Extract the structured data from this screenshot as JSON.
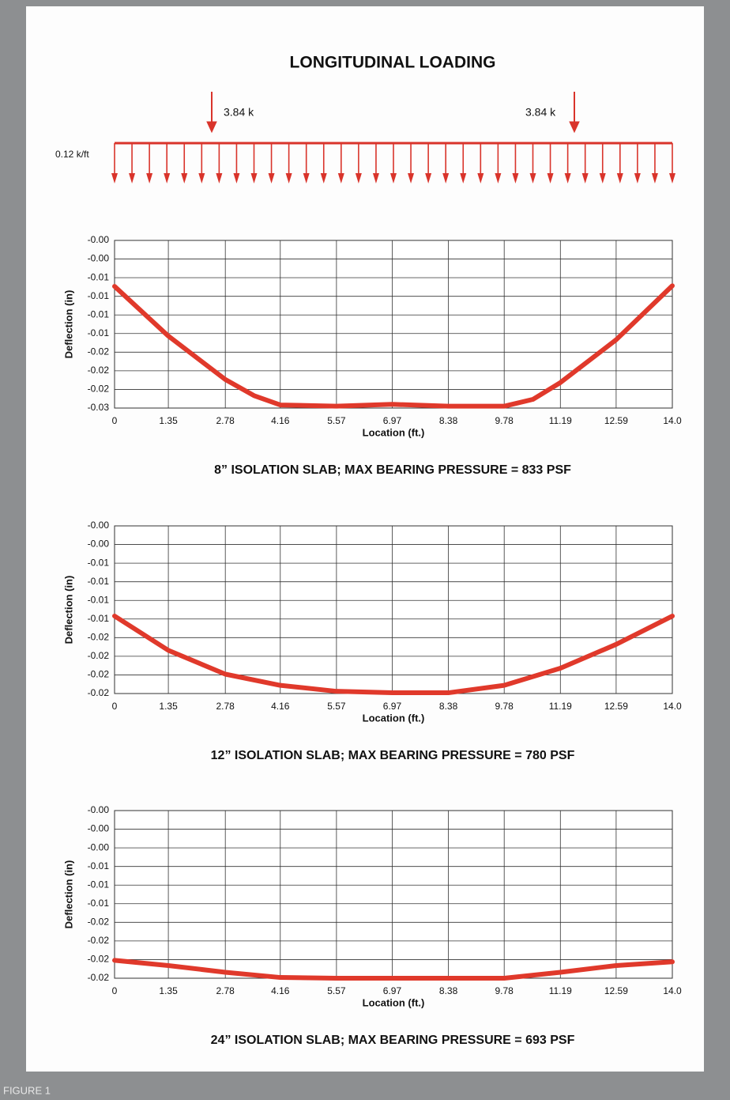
{
  "header": {
    "title": "LONGITUDINAL LOADING"
  },
  "load_diagram": {
    "distributed_load_label": "0.12 k/ft",
    "point_loads": [
      {
        "label": "3.84 k"
      },
      {
        "label": "3.84 k"
      }
    ]
  },
  "chart_data": [
    {
      "type": "line",
      "title": "8” ISOLATION SLAB; MAX BEARING PRESSURE = 833 PSF",
      "x_label": "Location (ft.)",
      "y_label": "Deflection (in)",
      "color": "#e0392b",
      "grid": true,
      "x": [
        0,
        1.35,
        2.78,
        3.5,
        4.16,
        5.57,
        6.97,
        8.38,
        9.78,
        10.5,
        11.19,
        12.59,
        14
      ],
      "values": [
        -0.0074,
        -0.0154,
        -0.0224,
        -0.025,
        -0.0265,
        -0.0267,
        -0.0264,
        -0.0267,
        -0.0267,
        -0.0256,
        -0.0229,
        -0.016,
        -0.0073
      ],
      "xlim": [
        0,
        14
      ],
      "ylim": [
        -0.027,
        0
      ],
      "xticks": [
        0,
        1.35,
        2.78,
        4.16,
        5.57,
        6.97,
        8.38,
        9.78,
        11.19,
        12.59,
        {
          "value": 14,
          "label": "14.0"
        }
      ],
      "yticks": [
        {
          "value": 0,
          "label": "-0.00"
        },
        {
          "value": -0.003,
          "label": "-0.00"
        },
        {
          "value": -0.006,
          "label": "-0.01"
        },
        {
          "value": -0.009,
          "label": "-0.01"
        },
        {
          "value": -0.012,
          "label": "-0.01"
        },
        {
          "value": -0.015,
          "label": "-0.01"
        },
        {
          "value": -0.018,
          "label": "-0.02"
        },
        {
          "value": -0.021,
          "label": "-0.02"
        },
        {
          "value": -0.024,
          "label": "-0.02"
        },
        {
          "value": -0.027,
          "label": "-0.03"
        }
      ]
    },
    {
      "type": "line",
      "title": "12” ISOLATION SLAB; MAX BEARING PRESSURE = 780 PSF",
      "x_label": "Location (ft.)",
      "y_label": "Deflection (in)",
      "color": "#e0392b",
      "grid": true,
      "x": [
        0,
        1.35,
        2.78,
        4.16,
        5.57,
        6.97,
        8.38,
        9.78,
        11.19,
        12.59,
        14
      ],
      "values": [
        -0.0121,
        -0.0167,
        -0.0199,
        -0.0214,
        -0.0222,
        -0.0224,
        -0.0224,
        -0.0214,
        -0.0191,
        -0.0159,
        -0.0121
      ],
      "xlim": [
        0,
        14
      ],
      "ylim": [
        -0.0225,
        0
      ],
      "xticks": [
        0,
        1.35,
        2.78,
        4.16,
        5.57,
        6.97,
        8.38,
        9.78,
        11.19,
        12.59,
        {
          "value": 14,
          "label": "14.0"
        }
      ],
      "yticks": [
        {
          "value": 0,
          "label": "-0.00"
        },
        {
          "value": -0.0025,
          "label": "-0.00"
        },
        {
          "value": -0.005,
          "label": "-0.01"
        },
        {
          "value": -0.0075,
          "label": "-0.01"
        },
        {
          "value": -0.01,
          "label": "-0.01"
        },
        {
          "value": -0.0125,
          "label": "-0.01"
        },
        {
          "value": -0.015,
          "label": "-0.02"
        },
        {
          "value": -0.0175,
          "label": "-0.02"
        },
        {
          "value": -0.02,
          "label": "-0.02"
        },
        {
          "value": -0.0225,
          "label": "-0.02"
        }
      ]
    },
    {
      "type": "line",
      "title": "24” ISOLATION SLAB; MAX BEARING PRESSURE = 693 PSF",
      "x_label": "Location (ft.)",
      "y_label": "Deflection (in)",
      "color": "#e0392b",
      "grid": true,
      "x": [
        0,
        1.35,
        2.78,
        4.16,
        5.57,
        6.97,
        8.38,
        9.78,
        11.19,
        12.59,
        14
      ],
      "values": [
        -0.0201,
        -0.0208,
        -0.0217,
        -0.0224,
        -0.0225,
        -0.0225,
        -0.0225,
        -0.0225,
        -0.0217,
        -0.0208,
        -0.0203
      ],
      "xlim": [
        0,
        14
      ],
      "ylim": [
        -0.0225,
        0
      ],
      "xticks": [
        0,
        1.35,
        2.78,
        4.16,
        5.57,
        6.97,
        8.38,
        9.78,
        11.19,
        12.59,
        {
          "value": 14,
          "label": "14.0"
        }
      ],
      "yticks": [
        {
          "value": 0,
          "label": "-0.00"
        },
        {
          "value": -0.0025,
          "label": "-0.00"
        },
        {
          "value": -0.005,
          "label": "-0.00"
        },
        {
          "value": -0.0075,
          "label": "-0.01"
        },
        {
          "value": -0.01,
          "label": "-0.01"
        },
        {
          "value": -0.0125,
          "label": "-0.01"
        },
        {
          "value": -0.015,
          "label": "-0.02"
        },
        {
          "value": -0.0175,
          "label": "-0.02"
        },
        {
          "value": -0.02,
          "label": "-0.02"
        },
        {
          "value": -0.0225,
          "label": "-0.02"
        }
      ]
    }
  ],
  "figure_label": "FIGURE 1"
}
